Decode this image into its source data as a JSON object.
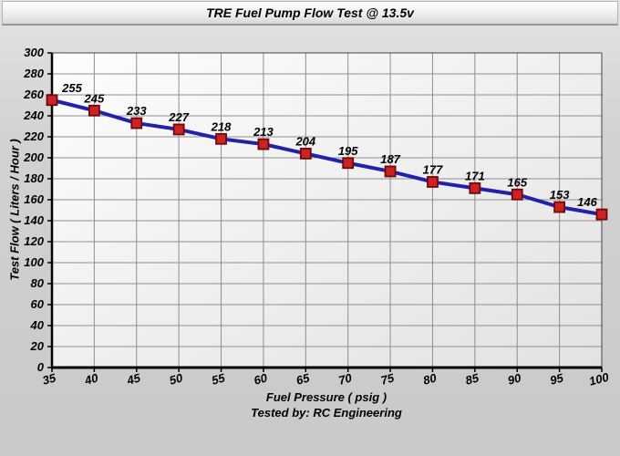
{
  "chart_data": {
    "type": "line",
    "title": "TRE Fuel Pump Flow Test @ 13.5v",
    "xlabel": "Fuel Pressure ( psig )",
    "ylabel": "Test Flow ( Liters / Hour )",
    "footer": "Tested by: RC Engineering",
    "x": [
      35,
      40,
      45,
      50,
      55,
      60,
      65,
      70,
      75,
      80,
      85,
      90,
      95,
      100
    ],
    "y": [
      255,
      245,
      233,
      227,
      218,
      213,
      204,
      195,
      187,
      177,
      171,
      165,
      153,
      146
    ],
    "point_labels": [
      "255",
      "245",
      "233",
      "227",
      "218",
      "213",
      "204",
      "195",
      "187",
      "177",
      "171",
      "165",
      "153",
      "146"
    ],
    "xlim": [
      35,
      100
    ],
    "ylim": [
      0,
      300
    ],
    "x_tick_step": 5,
    "y_tick_step": 20,
    "grid": true,
    "legend_position": "none",
    "colors": {
      "line": "#2121aa",
      "marker_fill": "#cc2222",
      "marker_border": "#6e0a0a",
      "grid": "#8f8f8f",
      "axis": "#000000",
      "text": "#000000"
    }
  }
}
